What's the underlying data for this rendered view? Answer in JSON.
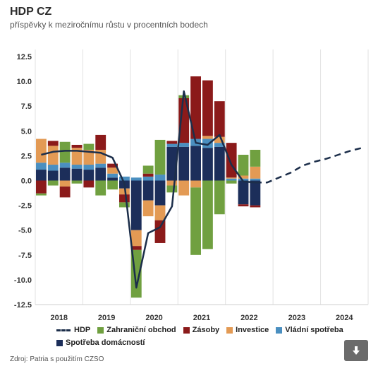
{
  "header": {
    "title": "HDP CZ",
    "subtitle": "příspěvky k meziročnímu růstu v procentních bodech"
  },
  "source": "Zdroj: Patria s použitím CZSO",
  "download_icon": "download-arrow-icon",
  "colors": {
    "spotreba": "#1c2e5a",
    "vladni": "#4a8fc0",
    "investice": "#e39a54",
    "zasoby": "#8b1a1a",
    "zahranicni": "#70a040",
    "hdp": "#1c2e4a"
  },
  "chart_data": {
    "type": "bar",
    "stacked": true,
    "ylim": [
      -12.5,
      12.5
    ],
    "yticks": [
      "12.5",
      "10.0",
      "7.5",
      "5.0",
      "2.5",
      "0.0",
      "-2.5",
      "-5.0",
      "-7.5",
      "-10.0",
      "-12.5"
    ],
    "xtick_labels": [
      "2018",
      "2019",
      "2020",
      "2021",
      "2022",
      "2023",
      "2024"
    ],
    "categories": [
      "2018Q1",
      "2018Q2",
      "2018Q3",
      "2018Q4",
      "2019Q1",
      "2019Q2",
      "2019Q3",
      "2019Q4",
      "2020Q1",
      "2020Q2",
      "2020Q3",
      "2020Q4",
      "2021Q1",
      "2021Q2",
      "2021Q3",
      "2021Q4",
      "2022Q1",
      "2022Q2",
      "2022Q3",
      "2022Q4",
      "2023Q1",
      "2023Q2",
      "2023Q3",
      "2023Q4",
      "2024Q1",
      "2024Q2",
      "2024Q3",
      "2024Q4"
    ],
    "series": [
      {
        "name": "Spotřeba domácností",
        "key": "spotreba",
        "values": [
          1.1,
          1.0,
          1.3,
          1.2,
          1.1,
          1.3,
          0.3,
          -0.8,
          -5.0,
          -2.0,
          -2.5,
          3.4,
          3.4,
          3.5,
          3.3,
          3.4,
          0.0,
          -2.4,
          -2.5,
          null,
          null,
          null,
          null,
          null,
          null,
          null,
          null,
          null
        ]
      },
      {
        "name": "Vládní spotřeba",
        "key": "vladni",
        "values": [
          0.7,
          0.6,
          0.5,
          0.4,
          0.5,
          0.4,
          0.4,
          0.4,
          0.3,
          0.4,
          0.6,
          0.3,
          0.4,
          0.7,
          0.9,
          0.4,
          0.2,
          0.2,
          0.2,
          null,
          null,
          null,
          null,
          null,
          null,
          null,
          null,
          null
        ]
      },
      {
        "name": "Investice",
        "key": "investice",
        "values": [
          2.4,
          1.9,
          -0.6,
          1.7,
          1.5,
          1.4,
          0.6,
          -0.6,
          -1.6,
          -1.6,
          -1.5,
          -0.5,
          -1.5,
          -0.7,
          0.3,
          0.6,
          0.1,
          0.3,
          1.2,
          null,
          null,
          null,
          null,
          null,
          null,
          null,
          null,
          null
        ]
      },
      {
        "name": "Zásoby",
        "key": "zasoby",
        "values": [
          -1.3,
          0.5,
          -1.1,
          0.3,
          -0.7,
          1.5,
          0.4,
          -0.8,
          -0.4,
          0.3,
          -2.3,
          0.3,
          4.5,
          6.3,
          5.6,
          3.6,
          3.5,
          -0.2,
          -0.2,
          null,
          null,
          null,
          null,
          null,
          null,
          null,
          null,
          null
        ]
      },
      {
        "name": "Zahraniční obchod",
        "key": "zahranicni",
        "values": [
          -0.2,
          -0.5,
          2.1,
          -0.3,
          0.6,
          -1.5,
          -0.9,
          -0.5,
          -4.8,
          0.8,
          3.5,
          -0.7,
          0.3,
          -6.8,
          -6.9,
          -3.4,
          -0.3,
          2.1,
          1.7,
          null,
          null,
          null,
          null,
          null,
          null,
          null,
          null,
          null
        ]
      }
    ],
    "hdp": {
      "name": "HDP",
      "actual": [
        2.6,
        2.9,
        3.0,
        3.0,
        2.9,
        2.8,
        2.3,
        -0.3,
        -10.8,
        -5.3,
        -4.7,
        -2.6,
        9.0,
        3.8,
        3.6,
        4.6,
        1.6,
        -0.1,
        -0.2,
        null,
        null,
        null,
        null,
        null,
        null,
        null,
        null,
        null
      ],
      "forecast": [
        null,
        null,
        null,
        null,
        null,
        null,
        null,
        null,
        null,
        null,
        null,
        null,
        null,
        null,
        null,
        null,
        null,
        null,
        -0.2,
        -0.2,
        0.3,
        0.8,
        1.5,
        1.9,
        2.2,
        2.6,
        3.0,
        3.3
      ]
    },
    "legend": [
      {
        "key": "hdp",
        "label": "HDP",
        "type": "line"
      },
      {
        "key": "zahranicni",
        "label": "Zahraniční obchod",
        "type": "bar"
      },
      {
        "key": "zasoby",
        "label": "Zásoby",
        "type": "bar"
      },
      {
        "key": "investice",
        "label": "Investice",
        "type": "bar"
      },
      {
        "key": "vladni",
        "label": "Vládní spotřeba",
        "type": "bar"
      },
      {
        "key": "spotreba",
        "label": "Spotřeba domácností",
        "type": "bar"
      }
    ],
    "grid": "vertical year separators"
  }
}
